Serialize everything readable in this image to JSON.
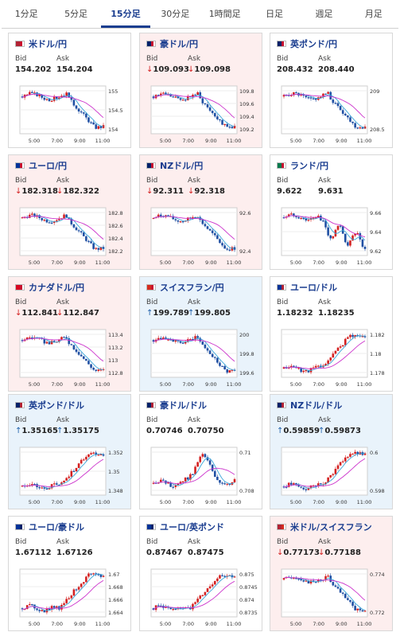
{
  "tabs": [
    {
      "label": "1分足",
      "active": false
    },
    {
      "label": "5分足",
      "active": false
    },
    {
      "label": "15分足",
      "active": true
    },
    {
      "label": "30分足",
      "active": false
    },
    {
      "label": "1時間足",
      "active": false
    },
    {
      "label": "日足",
      "active": false
    },
    {
      "label": "週足",
      "active": false
    },
    {
      "label": "月足",
      "active": false
    }
  ],
  "quote_labels": {
    "bid": "Bid",
    "ask": "Ask"
  },
  "chart_times": [
    "5:00",
    "7:00",
    "9:00",
    "11:00"
  ],
  "colors": {
    "up_candle": "#d42020",
    "down_candle": "#1f4fa3",
    "ma_fast": "#3aa6d8",
    "ma_slow": "#cc33cc",
    "down_bg": "#fdeeee",
    "up_bg": "#e9f3fb"
  },
  "pairs": [
    {
      "name": "米ドル/円",
      "flags": [
        "#b22234",
        "#c8102e"
      ],
      "bid": "154.202",
      "ask": "154.204",
      "arrow": "",
      "state": "neutral",
      "yticks": [
        "155",
        "154.5",
        "154"
      ],
      "shape": "drop"
    },
    {
      "name": "豪ドル/円",
      "flags": [
        "#012169",
        "#c8102e"
      ],
      "bid": "109.093",
      "ask": "109.098",
      "arrow": "↓",
      "state": "down",
      "yticks": [
        "109.8",
        "109.6",
        "109.4",
        "109.2"
      ],
      "shape": "drop"
    },
    {
      "name": "英ポンド/円",
      "flags": [
        "#012169",
        "#c8102e"
      ],
      "bid": "208.432",
      "ask": "208.440",
      "arrow": "",
      "state": "neutral",
      "yticks": [
        "209",
        "208.5"
      ],
      "shape": "drop"
    },
    {
      "name": "ユーロ/円",
      "flags": [
        "#003399",
        "#c8102e"
      ],
      "bid": "182.318",
      "ask": "182.322",
      "arrow": "↓",
      "state": "down",
      "yticks": [
        "182.8",
        "182.6",
        "182.4",
        "182.2"
      ],
      "shape": "drop"
    },
    {
      "name": "NZドル/円",
      "flags": [
        "#012169",
        "#c8102e"
      ],
      "bid": "92.311",
      "ask": "92.318",
      "arrow": "↓",
      "state": "down",
      "yticks": [
        "92.6",
        "92.4"
      ],
      "shape": "drop"
    },
    {
      "name": "ランド/円",
      "flags": [
        "#007a4d",
        "#c8102e"
      ],
      "bid": "9.622",
      "ask": "9.631",
      "arrow": "",
      "state": "neutral",
      "yticks": [
        "9.66",
        "9.64",
        "9.62"
      ],
      "shape": "dropvolatile"
    },
    {
      "name": "カナダドル/円",
      "flags": [
        "#d80621",
        "#c8102e"
      ],
      "bid": "112.841",
      "ask": "112.847",
      "arrow": "↓",
      "state": "down",
      "yticks": [
        "113.4",
        "113.2",
        "113",
        "112.8"
      ],
      "shape": "drop"
    },
    {
      "name": "スイスフラン/円",
      "flags": [
        "#d52b1e",
        "#c8102e"
      ],
      "bid": "199.789",
      "ask": "199.805",
      "arrow": "↑",
      "state": "up",
      "yticks": [
        "200",
        "199.8",
        "199.6"
      ],
      "shape": "drop"
    },
    {
      "name": "ユーロ/ドル",
      "flags": [
        "#003399",
        "#b22234"
      ],
      "bid": "1.18232",
      "ask": "1.18235",
      "arrow": "",
      "state": "neutral",
      "yticks": [
        "1.182",
        "1.18",
        "1.178"
      ],
      "shape": "rise"
    },
    {
      "name": "英ポンド/ドル",
      "flags": [
        "#012169",
        "#b22234"
      ],
      "bid": "1.35165",
      "ask": "1.35175",
      "arrow": "↑",
      "state": "up",
      "yticks": [
        "1.352",
        "1.35",
        "1.348"
      ],
      "shape": "rise"
    },
    {
      "name": "豪ドル/ドル",
      "flags": [
        "#012169",
        "#b22234"
      ],
      "bid": "0.70746",
      "ask": "0.70750",
      "arrow": "",
      "state": "neutral",
      "yticks": [
        "0.71",
        "0.708"
      ],
      "shape": "hump"
    },
    {
      "name": "NZドル/ドル",
      "flags": [
        "#012169",
        "#b22234"
      ],
      "bid": "0.59859",
      "ask": "0.59873",
      "arrow": "↑",
      "state": "up",
      "yticks": [
        "0.6",
        "0.598"
      ],
      "shape": "rise"
    },
    {
      "name": "ユーロ/豪ドル",
      "flags": [
        "#003399",
        "#012169"
      ],
      "bid": "1.67112",
      "ask": "1.67126",
      "arrow": "",
      "state": "neutral",
      "yticks": [
        "1.67",
        "1.668",
        "1.666",
        "1.664"
      ],
      "shape": "rise"
    },
    {
      "name": "ユーロ/英ポンド",
      "flags": [
        "#003399",
        "#012169"
      ],
      "bid": "0.87467",
      "ask": "0.87475",
      "arrow": "",
      "state": "neutral",
      "yticks": [
        "0.875",
        "0.8745",
        "0.874",
        "0.8735"
      ],
      "shape": "rise"
    },
    {
      "name": "米ドル/スイスフラン",
      "flags": [
        "#b22234",
        "#d52b1e"
      ],
      "bid": "0.77173",
      "ask": "0.77188",
      "arrow": "↓",
      "state": "down",
      "yticks": [
        "0.774",
        "0.772"
      ],
      "shape": "drop"
    }
  ]
}
